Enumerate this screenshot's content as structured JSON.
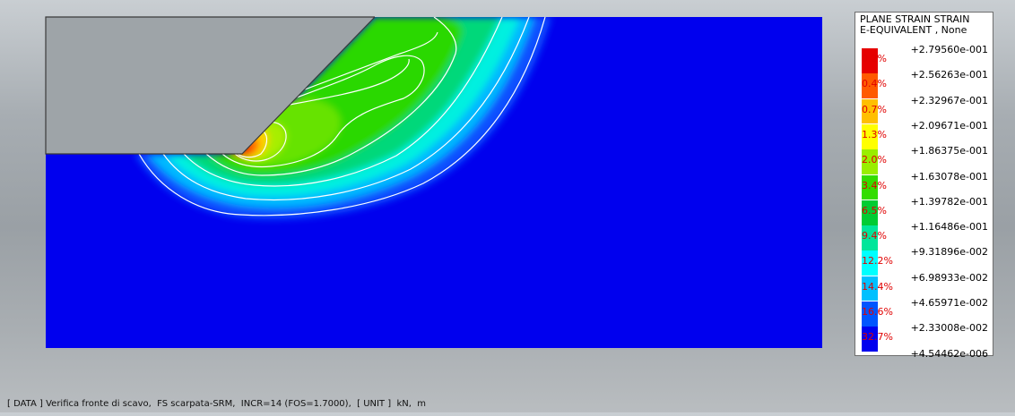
{
  "status_bar": {
    "text": "[ DATA ] Verifica fronte di scavo,  FS scarpata-SRM,  INCR=14 (FOS=1.7000),  [ UNIT ]  kN,  m"
  },
  "legend": {
    "title_line1": "PLANE STRAIN STRAIN",
    "title_line2": "E-EQUIVALENT , None",
    "values": [
      "+2.79560e-001",
      "+2.56263e-001",
      "+2.32967e-001",
      "+2.09671e-001",
      "+1.86375e-001",
      "+1.63078e-001",
      "+1.39782e-001",
      "+1.16486e-001",
      "+9.31896e-002",
      "+6.98933e-002",
      "+4.65971e-002",
      "+2.33008e-002",
      "+4.54462e-006"
    ],
    "bands": [
      {
        "pct": "0.2%",
        "color": "#e60000"
      },
      {
        "pct": "0.4%",
        "color": "#ff5a00"
      },
      {
        "pct": "0.7%",
        "color": "#ffbf00"
      },
      {
        "pct": "1.3%",
        "color": "#ffff00"
      },
      {
        "pct": "2.0%",
        "color": "#99ee00"
      },
      {
        "pct": "3.4%",
        "color": "#33dd00"
      },
      {
        "pct": "6.5%",
        "color": "#00cc33"
      },
      {
        "pct": "9.4%",
        "color": "#00e69a"
      },
      {
        "pct": "12.2%",
        "color": "#00ffff"
      },
      {
        "pct": "14.4%",
        "color": "#00c0ff"
      },
      {
        "pct": "16.6%",
        "color": "#0055ff"
      },
      {
        "pct": "32.7%",
        "color": "#0000ee"
      }
    ]
  },
  "colors": {
    "model_background": "#0000ee",
    "excavated_region": "#9ea4a8",
    "contour_line": "#ffffff",
    "legend_percent": "#e00000"
  }
}
